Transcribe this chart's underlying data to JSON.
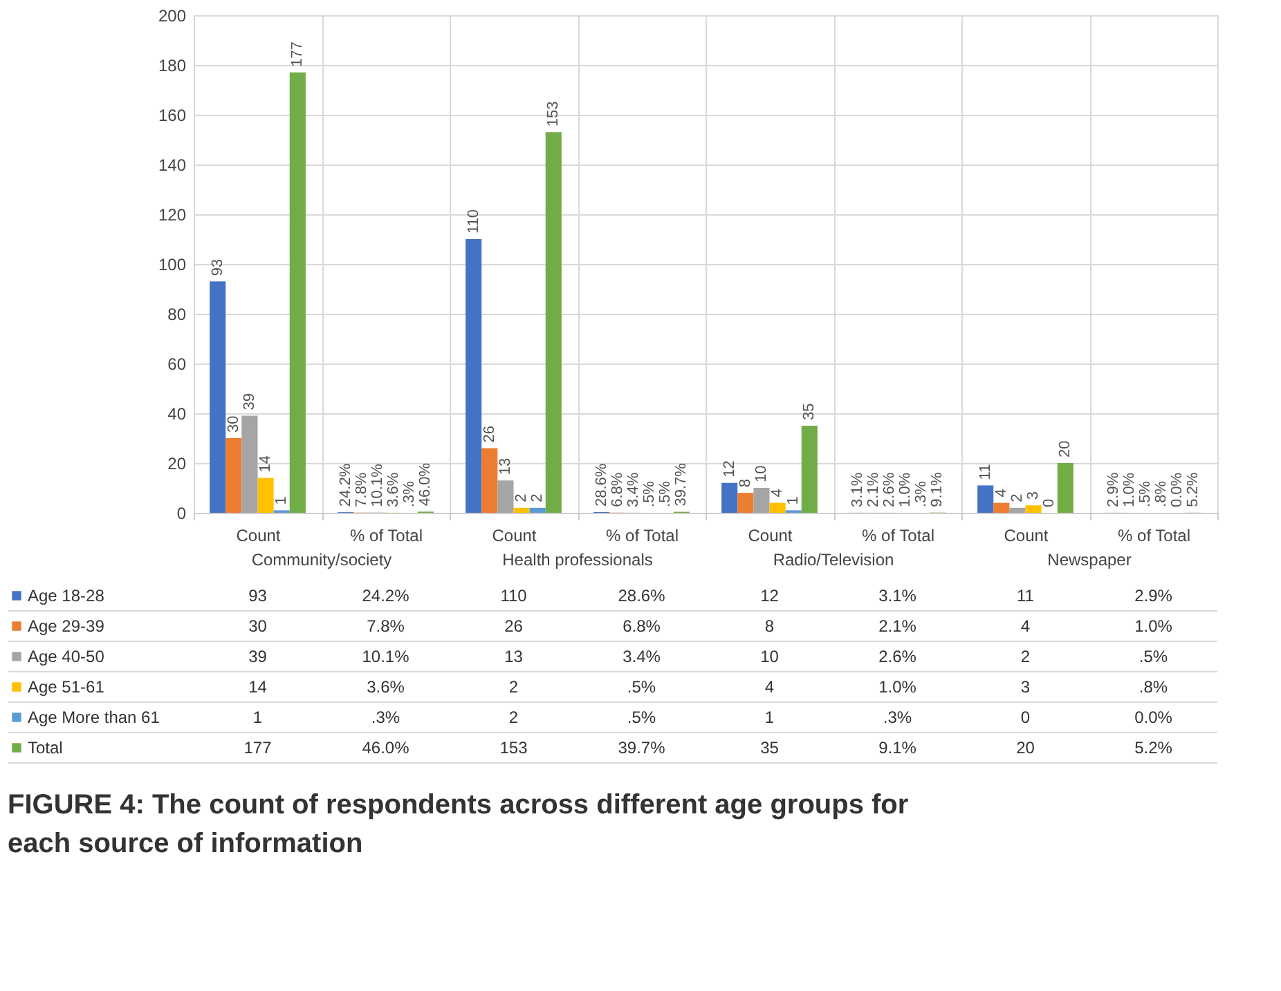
{
  "chart_data": {
    "type": "bar",
    "title": "FIGURE 4: The count of respondents across different age groups for each source of information",
    "categories": [
      "Count",
      "% of Total",
      "Count",
      "% of Total",
      "Count",
      "% of Total",
      "Count",
      "% of Total"
    ],
    "annotations": [
      "Community/society",
      "Health professionals",
      "Radio/Television",
      "Newspaper"
    ],
    "series": [
      {
        "name": "Age 18-28",
        "color": "#4472c4",
        "values": [
          93,
          0.242,
          110,
          0.286,
          12,
          0.031,
          11,
          0.029
        ],
        "value_labels": [
          "93",
          "24.2%",
          "110",
          "28.6%",
          "12",
          "3.1%",
          "11",
          "2.9%"
        ]
      },
      {
        "name": "Age 29-39",
        "color": "#ed7d31",
        "values": [
          30,
          0.078,
          26,
          0.068,
          8,
          0.021,
          4,
          0.01
        ],
        "value_labels": [
          "30",
          "7.8%",
          "26",
          "6.8%",
          "8",
          "2.1%",
          "4",
          "1.0%"
        ]
      },
      {
        "name": "Age 40-50",
        "color": "#a5a5a5",
        "values": [
          39,
          0.101,
          13,
          0.034,
          10,
          0.026,
          2,
          0.005
        ],
        "value_labels": [
          "39",
          "10.1%",
          "13",
          "3.4%",
          "10",
          "2.6%",
          "2",
          ".5%"
        ]
      },
      {
        "name": "Age 51-61",
        "color": "#ffc000",
        "values": [
          14,
          0.036,
          2,
          0.005,
          4,
          0.01,
          3,
          0.008
        ],
        "value_labels": [
          "14",
          "3.6%",
          "2",
          ".5%",
          "4",
          "1.0%",
          "3",
          ".8%"
        ]
      },
      {
        "name": "Age More than 61",
        "color": "#5b9bd5",
        "values": [
          1,
          0.003,
          2,
          0.005,
          1,
          0.003,
          0,
          0.0
        ],
        "value_labels": [
          "1",
          ".3%",
          "2",
          ".5%",
          "1",
          ".3%",
          "0",
          "0.0%"
        ]
      },
      {
        "name": "Total",
        "color": "#70ad47",
        "values": [
          177,
          0.46,
          153,
          0.397,
          35,
          0.091,
          20,
          0.052
        ],
        "value_labels": [
          "177",
          "46.0%",
          "153",
          "39.7%",
          "35",
          "9.1%",
          "20",
          "5.2%"
        ]
      }
    ],
    "ylim": [
      0,
      200
    ],
    "yticks": [
      0,
      20,
      40,
      60,
      80,
      100,
      120,
      140,
      160,
      180,
      200
    ],
    "grid": true,
    "legend": "bottom"
  }
}
